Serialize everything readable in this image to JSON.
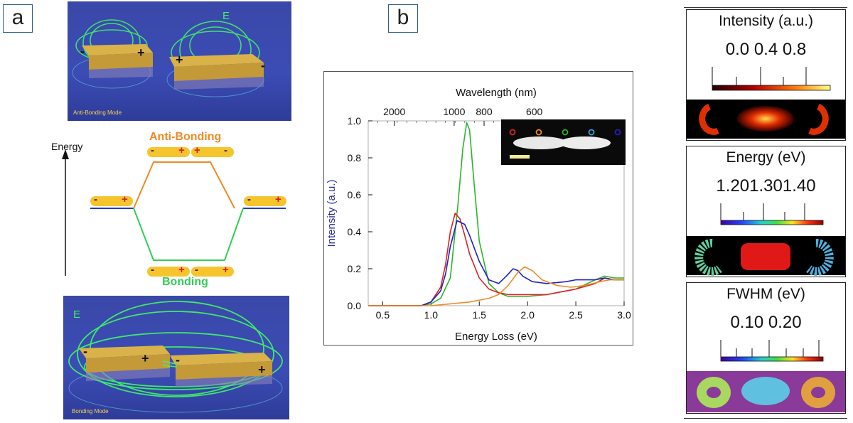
{
  "panel_a": {
    "tag": "a",
    "top_caption": "Anti-Bonding Mode",
    "bottom_caption": "Bonding Mode",
    "field_label": "E",
    "energy_label": "Energy",
    "anti_bonding_label": "Anti-Bonding",
    "bonding_label": "Bonding",
    "minus": "-",
    "plus": "+",
    "colors": {
      "anti_bonding": "#f08a24",
      "bonding": "#33cc55",
      "single": "#2040c0",
      "pill": "#f6c42c"
    }
  },
  "panel_b": {
    "tag": "b"
  },
  "chart_data": {
    "type": "line",
    "xlabel": "Energy Loss (eV)",
    "ylabel": "Intensity (a.u.)",
    "top_axis_label": "Wavelength (nm)",
    "xlim": [
      0.35,
      3.0
    ],
    "ylim": [
      0.0,
      1.0
    ],
    "x_ticks": [
      "0.5",
      "1.0",
      "1.5",
      "2.0",
      "2.5",
      "3.0"
    ],
    "y_ticks": [
      "0.0",
      "0.2",
      "0.4",
      "0.6",
      "0.8",
      "1.0"
    ],
    "top_ticks": [
      {
        "label": "2000",
        "x": 0.62
      },
      {
        "label": "1000",
        "x": 1.24
      },
      {
        "label": "800",
        "x": 1.55
      },
      {
        "label": "600",
        "x": 2.07
      }
    ],
    "series": [
      {
        "color": "#2ab52a",
        "x": [
          0.35,
          0.9,
          1.0,
          1.1,
          1.2,
          1.28,
          1.33,
          1.37,
          1.4,
          1.44,
          1.5,
          1.6,
          1.7,
          1.8,
          1.9,
          2.0,
          2.2,
          2.5,
          2.7,
          2.8,
          2.9,
          3.0
        ],
        "y": [
          0.0,
          0.0,
          0.01,
          0.04,
          0.15,
          0.55,
          0.85,
          0.99,
          0.95,
          0.7,
          0.35,
          0.12,
          0.07,
          0.05,
          0.05,
          0.05,
          0.06,
          0.09,
          0.14,
          0.16,
          0.15,
          0.15
        ]
      },
      {
        "color": "#e02020",
        "x": [
          0.35,
          0.9,
          1.0,
          1.1,
          1.15,
          1.2,
          1.25,
          1.3,
          1.35,
          1.4,
          1.5,
          1.6,
          1.7,
          1.8,
          1.9,
          2.0,
          2.2,
          2.4,
          2.5,
          2.7,
          2.8,
          2.9,
          3.0
        ],
        "y": [
          0.0,
          0.0,
          0.02,
          0.1,
          0.22,
          0.4,
          0.5,
          0.47,
          0.38,
          0.28,
          0.15,
          0.09,
          0.07,
          0.06,
          0.06,
          0.06,
          0.06,
          0.08,
          0.09,
          0.12,
          0.15,
          0.14,
          0.14
        ]
      },
      {
        "color": "#2020c0",
        "x": [
          0.35,
          0.9,
          1.0,
          1.1,
          1.15,
          1.2,
          1.27,
          1.35,
          1.4,
          1.5,
          1.6,
          1.7,
          1.78,
          1.85,
          1.9,
          1.95,
          2.05,
          2.2,
          2.4,
          2.5,
          2.7,
          2.8,
          2.9,
          3.0
        ],
        "y": [
          0.0,
          0.0,
          0.02,
          0.08,
          0.17,
          0.32,
          0.46,
          0.44,
          0.38,
          0.24,
          0.14,
          0.12,
          0.16,
          0.2,
          0.19,
          0.16,
          0.13,
          0.12,
          0.13,
          0.14,
          0.14,
          0.15,
          0.14,
          0.14
        ]
      },
      {
        "color": "#f08a24",
        "x": [
          0.35,
          1.0,
          1.2,
          1.4,
          1.6,
          1.7,
          1.8,
          1.9,
          1.97,
          2.05,
          2.15,
          2.3,
          2.45,
          2.6,
          2.75,
          2.85,
          3.0
        ],
        "y": [
          0.0,
          0.0,
          0.01,
          0.02,
          0.04,
          0.06,
          0.11,
          0.18,
          0.21,
          0.19,
          0.14,
          0.11,
          0.1,
          0.11,
          0.13,
          0.14,
          0.14
        ]
      }
    ],
    "inset": {
      "dot_colors": [
        "#e02020",
        "#f08a24",
        "#2ab52a",
        "#29a6e0",
        "#2020c0"
      ]
    }
  },
  "maps": [
    {
      "title": "Intensity (a.u.)",
      "ticks": "0.0   0.4   0.8"
    },
    {
      "title": "Energy (eV)",
      "ticks": "1.201.301.40"
    },
    {
      "title": "FWHM (eV)",
      "ticks": "0.10      0.20"
    }
  ]
}
